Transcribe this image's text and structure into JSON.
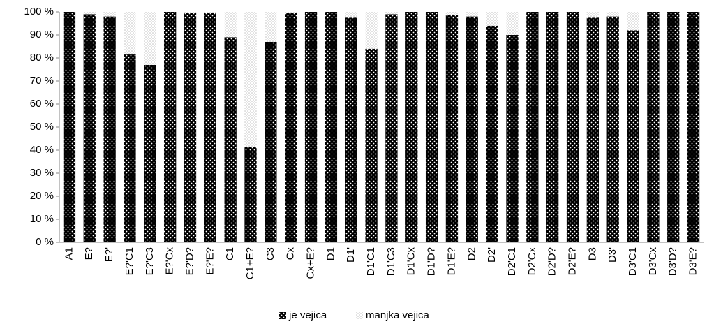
{
  "chart_data": {
    "type": "stacked_bar",
    "categories": [
      "A1",
      "E?",
      "E?'",
      "E?'C1",
      "E?'C3",
      "E?'Cx",
      "E?'D?",
      "E?'E?",
      "C1",
      "C1+E?",
      "C3",
      "Cx",
      "Cx+E?",
      "D1",
      "D1'",
      "D1'C1",
      "D1'C3",
      "D1'Cx",
      "D1'D?",
      "D1'E?",
      "D2",
      "D2'",
      "D2'C1",
      "D2'Cx",
      "D2'D?",
      "D2'E?",
      "D3",
      "D3'",
      "D3'C1",
      "D3'Cx",
      "D3'D?",
      "D3'E?"
    ],
    "series": [
      {
        "name": "je vejica",
        "color": "#000000",
        "values": [
          100,
          99,
          98,
          81.5,
          77,
          100,
          99.5,
          99.5,
          89,
          41.5,
          87,
          99.5,
          100,
          100,
          97.5,
          84,
          99,
          100,
          100,
          98.5,
          98,
          94,
          90,
          100,
          100,
          100,
          97.5,
          98,
          92,
          100,
          100,
          100
        ]
      },
      {
        "name": "manjka vejica",
        "color": "#bfbfbf",
        "values": [
          0,
          1,
          2,
          18.5,
          23,
          0,
          0.5,
          0.5,
          11,
          58.5,
          13,
          0.5,
          0,
          0,
          2.5,
          16,
          1,
          0,
          0,
          1.5,
          2,
          6,
          10,
          0,
          0,
          0,
          2.5,
          2,
          8,
          0,
          0,
          0
        ]
      }
    ],
    "ylim": [
      0,
      100
    ],
    "yticks": [
      {
        "value": 0,
        "label": "0 %"
      },
      {
        "value": 10,
        "label": "10 %"
      },
      {
        "value": 20,
        "label": "20 %"
      },
      {
        "value": 30,
        "label": "30 %"
      },
      {
        "value": 40,
        "label": "40 %"
      },
      {
        "value": 50,
        "label": "50 %"
      },
      {
        "value": 60,
        "label": "60 %"
      },
      {
        "value": 70,
        "label": "70 %"
      },
      {
        "value": 80,
        "label": "80 %"
      },
      {
        "value": 90,
        "label": "90 %"
      },
      {
        "value": 100,
        "label": "100 %"
      }
    ],
    "grid": false,
    "legend": "bottom"
  }
}
